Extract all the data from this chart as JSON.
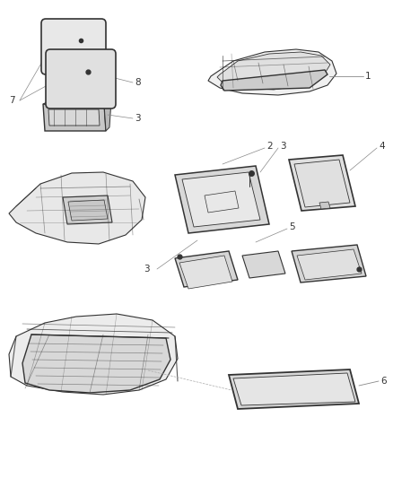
{
  "background_color": "#ffffff",
  "line_color": "#333333",
  "gray_fill": "#d8d8d8",
  "light_fill": "#eeeeee",
  "figsize": [
    4.38,
    5.33
  ],
  "dpi": 100
}
